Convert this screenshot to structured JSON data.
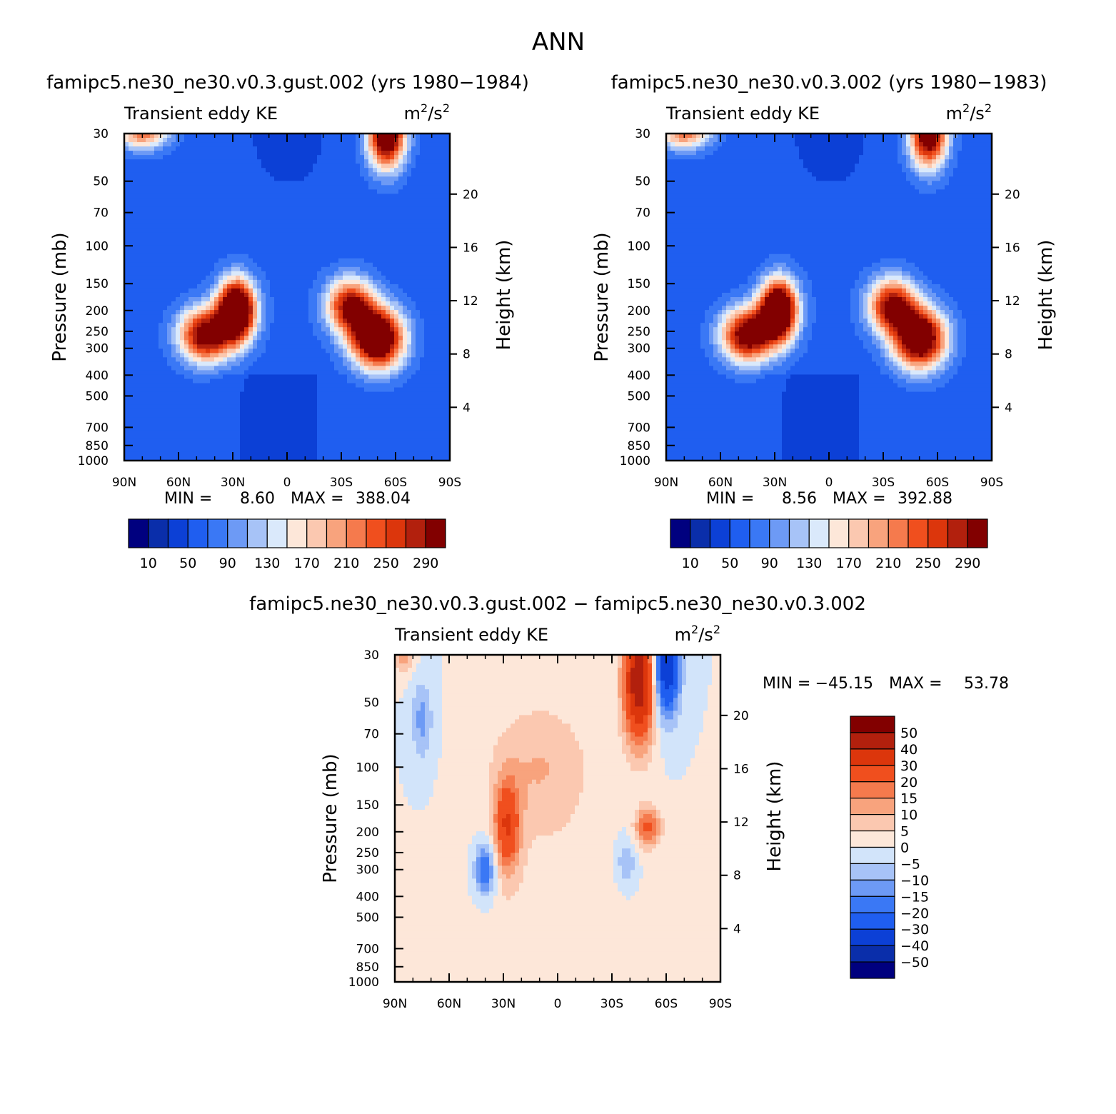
{
  "page_title": "ANN",
  "colors": {
    "ke_scale": [
      "#00007f",
      "#0a2eaa",
      "#0c40d6",
      "#1f5ef0",
      "#3a78f5",
      "#6d9af5",
      "#a7c3f7",
      "#dae9fb",
      "#fde7d9",
      "#fbc8b0",
      "#f8a37d",
      "#f57a4d",
      "#f04f1e",
      "#dc360c",
      "#b2200d",
      "#820000"
    ],
    "diff_scale": [
      "#00007f",
      "#0a2eaa",
      "#0c40d6",
      "#1f5ef0",
      "#3a78f5",
      "#6d9af5",
      "#a7c3f7",
      "#d2e4fa",
      "#fde7d9",
      "#fbc8b0",
      "#f8a37d",
      "#f57a4d",
      "#f04f1e",
      "#dc360c",
      "#b2200d",
      "#820000"
    ]
  },
  "chart_data": [
    {
      "type": "heatmap",
      "title": "famipc5.ne30_ne30.v0.3.gust.002 (yrs 1980−1984)",
      "left_label": "Transient eddy KE",
      "units_label": "m",
      "units_sup_a": "2",
      "units_mid": "/s",
      "units_sup_b": "2",
      "ylabel": "Pressure (mb)",
      "ylabel_right": "Height (km)",
      "x_ticks": [
        "90N",
        "60N",
        "30N",
        "0",
        "30S",
        "60S",
        "90S"
      ],
      "y_ticks": [
        "30",
        "50",
        "70",
        "100",
        "150",
        "200",
        "250",
        "300",
        "400",
        "500",
        "700",
        "850",
        "1000"
      ],
      "y_right_ticks": [
        "20",
        "16",
        "12",
        "8",
        "4"
      ],
      "min_label": "MIN =",
      "min_value": "8.60",
      "max_label": "MAX =",
      "max_value": "388.04",
      "colorbar_labels": [
        "10",
        "50",
        "90",
        "130",
        "170",
        "210",
        "250",
        "290"
      ],
      "field_levels": [
        10,
        30,
        50,
        70,
        90,
        110,
        130,
        150,
        170,
        190,
        210,
        230,
        250,
        270,
        290
      ],
      "features": [
        {
          "lat": 28,
          "p": 200,
          "value": 388,
          "lat_sigma": 7,
          "p_sigma_log": 0.22
        },
        {
          "lat": 45,
          "p": 260,
          "value": 270,
          "lat_sigma": 10,
          "p_sigma_log": 0.2
        },
        {
          "lat": -50,
          "p": 270,
          "value": 340,
          "lat_sigma": 10,
          "p_sigma_log": 0.22
        },
        {
          "lat": -35,
          "p": 190,
          "value": 240,
          "lat_sigma": 9,
          "p_sigma_log": 0.2
        },
        {
          "lat": -55,
          "p": 30,
          "value": 320,
          "lat_sigma": 7,
          "p_sigma_log": 0.25
        },
        {
          "lat": 80,
          "p": 30,
          "value": 160,
          "lat_sigma": 10,
          "p_sigma_log": 0.12
        }
      ]
    },
    {
      "type": "heatmap",
      "title": "famipc5.ne30_ne30.v0.3.002 (yrs 1980−1983)",
      "left_label": "Transient eddy KE",
      "units_label": "m",
      "units_sup_a": "2",
      "units_mid": "/s",
      "units_sup_b": "2",
      "ylabel": "Pressure (mb)",
      "ylabel_right": "Height (km)",
      "x_ticks": [
        "90N",
        "60N",
        "30N",
        "0",
        "30S",
        "60S",
        "90S"
      ],
      "y_ticks": [
        "30",
        "50",
        "70",
        "100",
        "150",
        "200",
        "250",
        "300",
        "400",
        "500",
        "700",
        "850",
        "1000"
      ],
      "y_right_ticks": [
        "20",
        "16",
        "12",
        "8",
        "4"
      ],
      "min_label": "MIN =",
      "min_value": "8.56",
      "max_label": "MAX =",
      "max_value": "392.88",
      "colorbar_labels": [
        "10",
        "50",
        "90",
        "130",
        "170",
        "210",
        "250",
        "290"
      ],
      "field_levels": [
        10,
        30,
        50,
        70,
        90,
        110,
        130,
        150,
        170,
        190,
        210,
        230,
        250,
        270,
        290
      ],
      "features": [
        {
          "lat": 28,
          "p": 200,
          "value": 370,
          "lat_sigma": 7,
          "p_sigma_log": 0.22
        },
        {
          "lat": 45,
          "p": 260,
          "value": 275,
          "lat_sigma": 10,
          "p_sigma_log": 0.2
        },
        {
          "lat": -50,
          "p": 270,
          "value": 320,
          "lat_sigma": 10,
          "p_sigma_log": 0.22
        },
        {
          "lat": -35,
          "p": 190,
          "value": 245,
          "lat_sigma": 9,
          "p_sigma_log": 0.2
        },
        {
          "lat": -55,
          "p": 30,
          "value": 290,
          "lat_sigma": 7,
          "p_sigma_log": 0.25
        },
        {
          "lat": 80,
          "p": 30,
          "value": 160,
          "lat_sigma": 10,
          "p_sigma_log": 0.12
        }
      ]
    },
    {
      "type": "heatmap",
      "title": "famipc5.ne30_ne30.v0.3.gust.002 − famipc5.ne30_ne30.v0.3.002",
      "left_label": "Transient eddy KE",
      "units_label": "m",
      "units_sup_a": "2",
      "units_mid": "/s",
      "units_sup_b": "2",
      "ylabel": "Pressure (mb)",
      "ylabel_right": "Height (km)",
      "x_ticks": [
        "90N",
        "60N",
        "30N",
        "0",
        "30S",
        "60S",
        "90S"
      ],
      "y_ticks": [
        "30",
        "50",
        "70",
        "100",
        "150",
        "200",
        "250",
        "300",
        "400",
        "500",
        "700",
        "850",
        "1000"
      ],
      "y_right_ticks": [
        "20",
        "16",
        "12",
        "8",
        "4"
      ],
      "min_label": "MIN =",
      "min_value": "−45.15",
      "max_label": "MAX =",
      "max_value": "53.78",
      "colorbar_labels": [
        "50",
        "40",
        "30",
        "20",
        "15",
        "10",
        "5",
        "0",
        "−5",
        "−10",
        "−15",
        "−20",
        "−30",
        "−40",
        "−50"
      ],
      "field_levels": [
        -50,
        -40,
        -30,
        -20,
        -15,
        -10,
        -5,
        0,
        5,
        10,
        15,
        20,
        30,
        40,
        50
      ],
      "features": [
        {
          "lat": 28,
          "p": 190,
          "value": 28,
          "lat_sigma": 5,
          "p_sigma_log": 0.35
        },
        {
          "lat": 40,
          "p": 300,
          "value": -22,
          "lat_sigma": 4,
          "p_sigma_log": 0.2
        },
        {
          "lat": -45,
          "p": 40,
          "value": 50,
          "lat_sigma": 6,
          "p_sigma_log": 0.45
        },
        {
          "lat": -60,
          "p": 35,
          "value": -40,
          "lat_sigma": 5,
          "p_sigma_log": 0.35
        },
        {
          "lat": 75,
          "p": 60,
          "value": -12,
          "lat_sigma": 4,
          "p_sigma_log": 0.3
        },
        {
          "lat": -50,
          "p": 190,
          "value": 22,
          "lat_sigma": 5,
          "p_sigma_log": 0.15
        },
        {
          "lat": -38,
          "p": 280,
          "value": -10,
          "lat_sigma": 4,
          "p_sigma_log": 0.2
        },
        {
          "lat": 85,
          "p": 30,
          "value": 12,
          "lat_sigma": 4,
          "p_sigma_log": 0.15
        },
        {
          "lat": 10,
          "p": 100,
          "value": 10,
          "lat_sigma": 20,
          "p_sigma_log": 0.5
        },
        {
          "lat": 0,
          "p": 600,
          "value": 4,
          "lat_sigma": 30,
          "p_sigma_log": 0.8
        }
      ]
    }
  ]
}
